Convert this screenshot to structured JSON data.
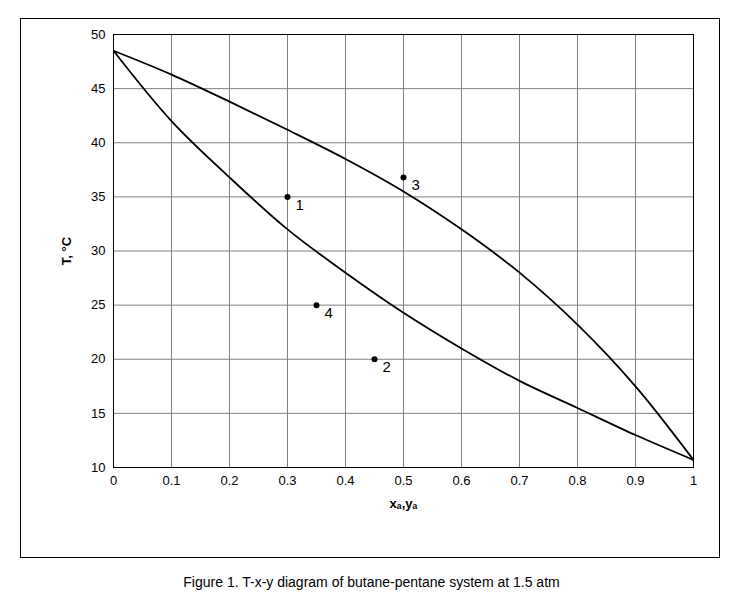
{
  "chart_data": {
    "type": "line",
    "title": "Figure 1. T-x-y diagram of butane-pentane system at 1.5 atm",
    "x_label": "xₐ,yₐ",
    "y_label": "T, °C",
    "x": [
      0,
      0.1,
      0.2,
      0.3,
      0.4,
      0.5,
      0.6,
      0.7,
      0.8,
      0.9,
      1
    ],
    "series": [
      {
        "color": "#000000",
        "values": [
          48.5,
          42.0,
          36.8,
          32.0,
          28.0,
          24.3,
          21.0,
          18.0,
          15.5,
          13.0,
          10.7
        ]
      },
      {
        "color": "#000000",
        "values": [
          48.5,
          46.3,
          43.8,
          41.2,
          38.5,
          35.5,
          32.0,
          28.0,
          23.2,
          17.5,
          10.7
        ]
      }
    ],
    "points": [
      {
        "x": 0.3,
        "y": 35,
        "label": "1"
      },
      {
        "x": 0.45,
        "y": 20,
        "label": "2"
      },
      {
        "x": 0.5,
        "y": 36.8,
        "label": "3"
      },
      {
        "x": 0.35,
        "y": 25,
        "label": "4"
      }
    ],
    "xlim": [
      0,
      1
    ],
    "ylim": [
      10,
      50
    ],
    "xticks": [
      0,
      0.1,
      0.2,
      0.3,
      0.4,
      0.5,
      0.6,
      0.7,
      0.8,
      0.9,
      1
    ],
    "yticks": [
      10,
      15,
      20,
      25,
      30,
      35,
      40,
      45,
      50
    ],
    "grid": true
  }
}
